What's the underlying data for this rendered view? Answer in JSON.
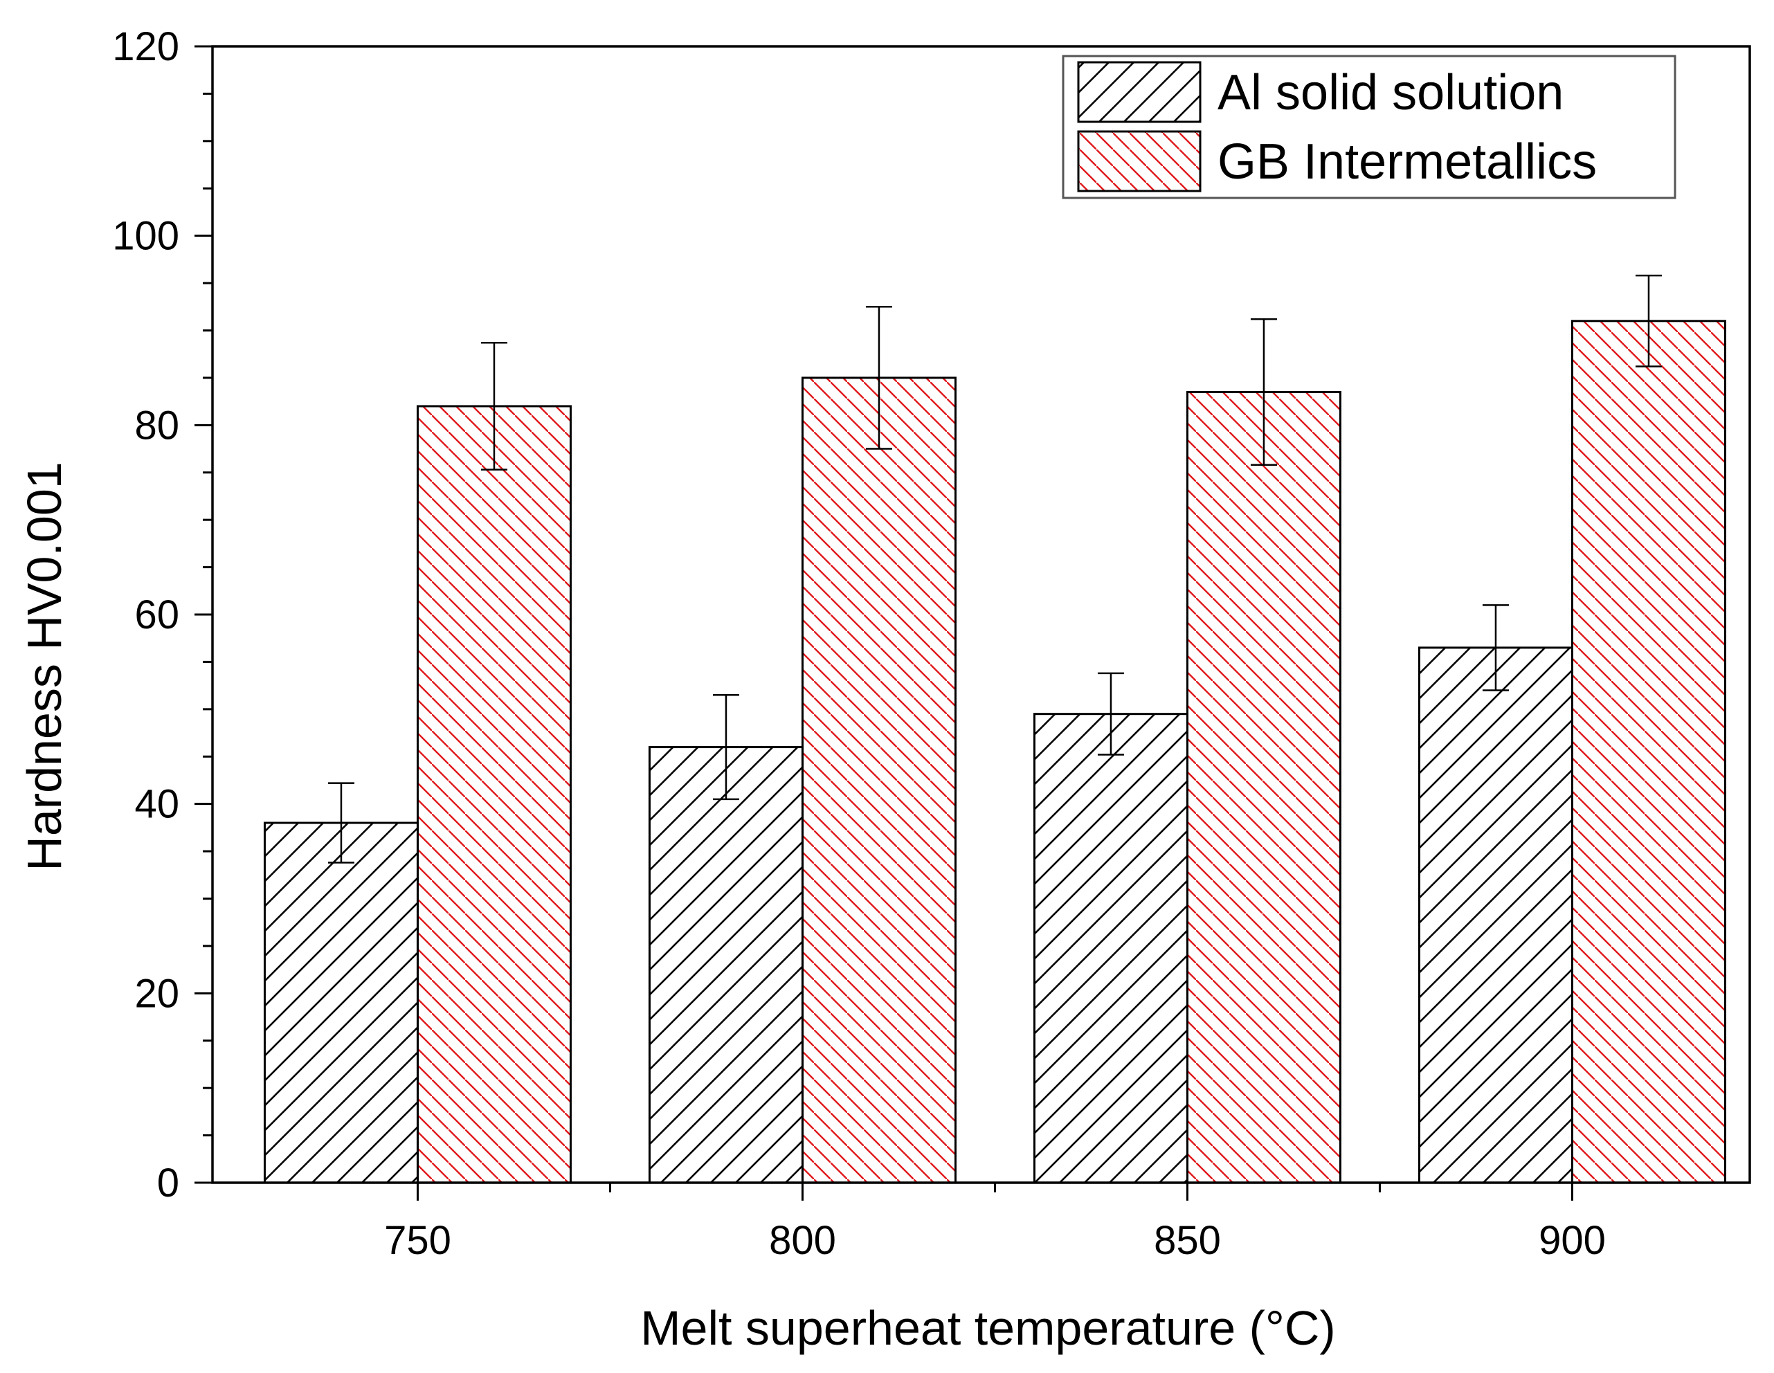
{
  "chart_data": {
    "type": "bar",
    "xlabel": "Melt superheat temperature (°C)",
    "ylabel": "Hardness HV0.001",
    "ylim": [
      0,
      120
    ],
    "yticks": [
      0,
      20,
      40,
      60,
      80,
      100,
      120
    ],
    "ytick_labels": [
      "0",
      "20",
      "40",
      "60",
      "80",
      "100",
      "120"
    ],
    "categories": [
      "750",
      "800",
      "850",
      "900"
    ],
    "legend_position": "top-right",
    "series": [
      {
        "name": "Al solid solution",
        "color": "#000000",
        "hatch": "forward-diagonal",
        "values": [
          38,
          46,
          49.5,
          56.5
        ],
        "errors": [
          4.2,
          5.5,
          4.3,
          4.5
        ]
      },
      {
        "name": "GB Intermetallics",
        "color": "#e0191c",
        "hatch": "backward-diagonal",
        "values": [
          82,
          85,
          83.5,
          91
        ],
        "errors": [
          6.7,
          7.5,
          7.7,
          4.8
        ]
      }
    ]
  }
}
